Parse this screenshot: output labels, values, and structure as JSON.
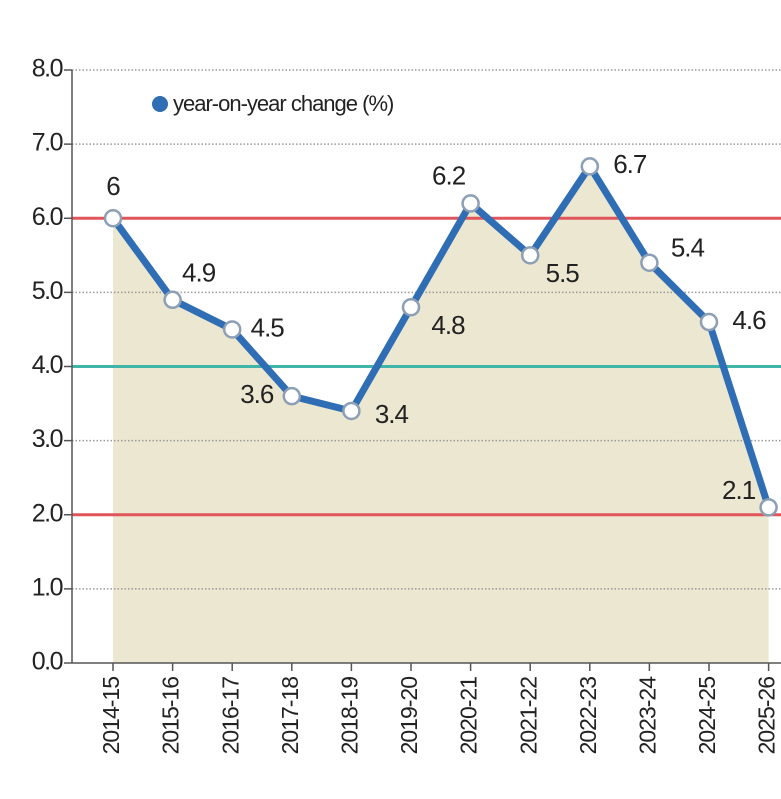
{
  "chart_data": {
    "type": "line",
    "categories": [
      "2014-15",
      "2015-16",
      "2016-17",
      "2017-18",
      "2018-19",
      "2019-20",
      "2020-21",
      "2021-22",
      "2022-23",
      "2023-24",
      "2024-25",
      "2025-26"
    ],
    "series": [
      {
        "name": "year-on-year change (%)",
        "color": "#2f6db5",
        "values": [
          6,
          4.9,
          4.5,
          3.6,
          3.4,
          4.8,
          6.2,
          5.5,
          6.7,
          5.4,
          4.6,
          2.1
        ]
      }
    ],
    "ylim": [
      0,
      8
    ],
    "yticks": [
      {
        "value": 0,
        "label": "0.0"
      },
      {
        "value": 1,
        "label": "1.0"
      },
      {
        "value": 2,
        "label": "2.0"
      },
      {
        "value": 3,
        "label": "3.0"
      },
      {
        "value": 4,
        "label": "4.0"
      },
      {
        "value": 5,
        "label": "5.0"
      },
      {
        "value": 6,
        "label": "6.0"
      },
      {
        "value": 7,
        "label": "7.0"
      },
      {
        "value": 8,
        "label": "8.0"
      }
    ],
    "reference_lines": [
      {
        "value": 6,
        "color": "#e0555a"
      },
      {
        "value": 4,
        "color": "#3fb5a8"
      },
      {
        "value": 2,
        "color": "#e0555a"
      }
    ],
    "area_color": "#ece7d1",
    "grid": true,
    "legend": "top-left"
  }
}
